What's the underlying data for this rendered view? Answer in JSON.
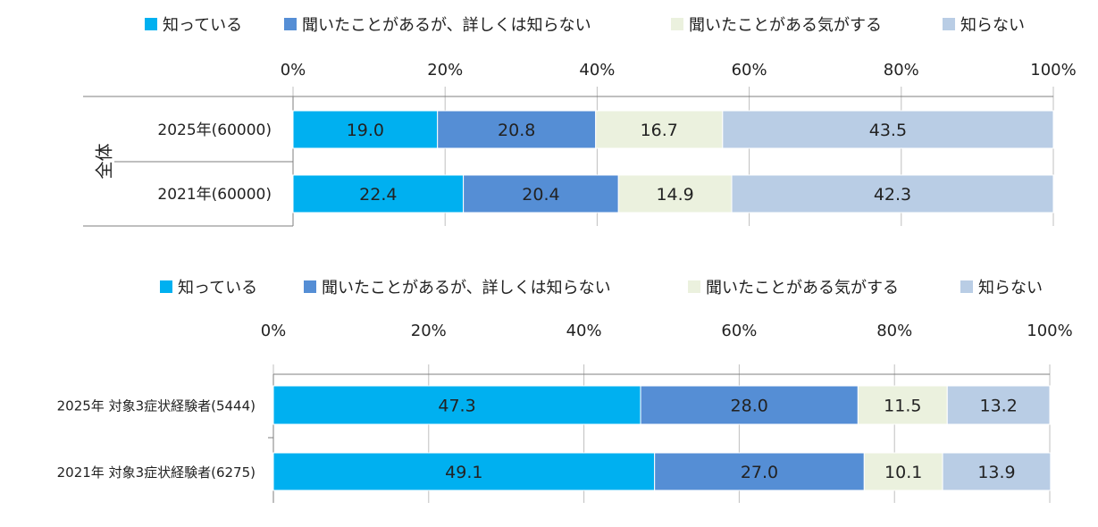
{
  "chart_data": [
    {
      "type": "bar",
      "orientation": "horizontal",
      "stacked": true,
      "legend_position": "top",
      "xlim": [
        0,
        100
      ],
      "x_ticks": [
        "0%",
        "20%",
        "40%",
        "60%",
        "80%",
        "100%"
      ],
      "group_label": "全体",
      "categories": [
        "2025年(60000)",
        "2021年(60000)"
      ],
      "series": [
        {
          "name": "知っている",
          "color": "#00B0F0",
          "values": [
            19.0,
            22.4
          ],
          "labels": [
            "19.0",
            "22.4"
          ]
        },
        {
          "name": "聞いたことがあるが、詳しくは知らない",
          "color": "#558ED5",
          "values": [
            20.8,
            20.4
          ],
          "labels": [
            "20.8",
            "20.4"
          ]
        },
        {
          "name": "聞いたことがある気がする",
          "color": "#EBF1DE",
          "values": [
            16.7,
            14.9
          ],
          "labels": [
            "16.7",
            "14.9"
          ]
        },
        {
          "name": "知らない",
          "color": "#B9CDE5",
          "values": [
            43.5,
            42.3
          ],
          "labels": [
            "43.5",
            "42.3"
          ]
        }
      ]
    },
    {
      "type": "bar",
      "orientation": "horizontal",
      "stacked": true,
      "legend_position": "top",
      "xlim": [
        0,
        100
      ],
      "x_ticks": [
        "0%",
        "20%",
        "40%",
        "60%",
        "80%",
        "100%"
      ],
      "categories": [
        "2025年 対象3症状経験者(5444)",
        "2021年 対象3症状経験者(6275)"
      ],
      "series": [
        {
          "name": "知っている",
          "color": "#00B0F0",
          "values": [
            47.3,
            49.1
          ],
          "labels": [
            "47.3",
            "49.1"
          ]
        },
        {
          "name": "聞いたことがあるが、詳しくは知らない",
          "color": "#558ED5",
          "values": [
            28.0,
            27.0
          ],
          "labels": [
            "28.0",
            "27.0"
          ]
        },
        {
          "name": "聞いたことがある気がする",
          "color": "#EBF1DE",
          "values": [
            11.5,
            10.1
          ],
          "labels": [
            "11.5",
            "10.1"
          ]
        },
        {
          "name": "知らない",
          "color": "#B9CDE5",
          "values": [
            13.2,
            13.9
          ],
          "labels": [
            "13.2",
            "13.9"
          ]
        }
      ]
    }
  ]
}
